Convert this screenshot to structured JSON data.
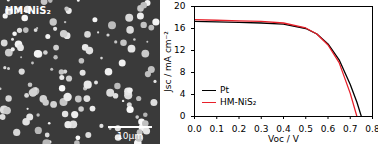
{
  "chart_data": {
    "type": "line",
    "xlabel": "Voc / V",
    "ylabel": "Jsc / mA cm⁻²",
    "x": [
      0,
      0.1,
      0.2,
      0.3,
      0.4,
      0.5,
      0.55,
      0.6,
      0.65,
      0.7,
      0.73,
      0.75
    ],
    "series": [
      {
        "name": "Pt",
        "color": "#000000",
        "values": [
          17.3,
          17.2,
          17.1,
          17.0,
          16.8,
          16.0,
          15.0,
          13.2,
          10.3,
          5.8,
          2.6,
          0
        ]
      },
      {
        "name": "HM-NiS₂",
        "color": "#e8202a",
        "values": [
          17.6,
          17.5,
          17.4,
          17.3,
          17.0,
          16.1,
          15.0,
          13.0,
          9.8,
          4.2,
          0,
          null
        ]
      }
    ],
    "xlim": [
      0,
      0.8
    ],
    "xticks": [
      {
        "value": 0,
        "label": "0.0"
      },
      0.1,
      0.2,
      0.3,
      0.4,
      0.5,
      0.6,
      0.7,
      0.8
    ],
    "ylim": [
      0,
      20
    ],
    "yticks": [
      0,
      4,
      8,
      12,
      16,
      20
    ],
    "legend": "bottom-left",
    "grid": false
  },
  "image_panel": {
    "label": "HM-NiS₂",
    "scale_bar": "10μm"
  }
}
